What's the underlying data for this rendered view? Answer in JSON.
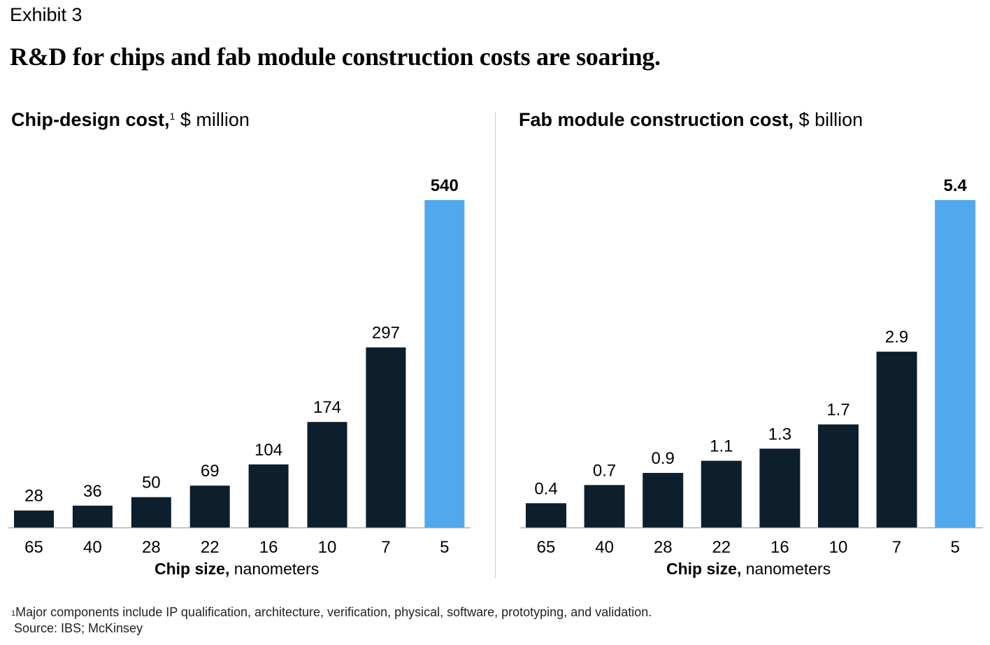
{
  "exhibit": "Exhibit 3",
  "headline": "R&D for chips and fab module construction costs are soaring.",
  "chart_data": [
    {
      "type": "bar",
      "title": "Chip-design cost,",
      "title_note": "1",
      "unit": "$ million",
      "categories": [
        "65",
        "40",
        "28",
        "22",
        "16",
        "10",
        "7",
        "5"
      ],
      "values": [
        28,
        36,
        50,
        69,
        104,
        174,
        297,
        540
      ],
      "value_labels": [
        "28",
        "36",
        "50",
        "69",
        "104",
        "174",
        "297",
        "540"
      ],
      "highlight_index": 7,
      "xlabel_bold": "Chip size,",
      "xlabel_rest": "nanometers",
      "ylim": [
        0,
        540
      ],
      "grid": false
    },
    {
      "type": "bar",
      "title": "Fab module construction cost,",
      "unit": "$ billion",
      "categories": [
        "65",
        "40",
        "28",
        "22",
        "16",
        "10",
        "7",
        "5"
      ],
      "values": [
        0.4,
        0.7,
        0.9,
        1.1,
        1.3,
        1.7,
        2.9,
        5.4
      ],
      "value_labels": [
        "0.4",
        "0.7",
        "0.9",
        "1.1",
        "1.3",
        "1.7",
        "2.9",
        "5.4"
      ],
      "highlight_index": 7,
      "xlabel_bold": "Chip size,",
      "xlabel_rest": "nanometers",
      "ylim": [
        0,
        5.4
      ],
      "grid": false
    }
  ],
  "colors": {
    "bar": "#0d1e2d",
    "highlight": "#52a8ec",
    "axis": "#b0b0b0"
  },
  "footnote": {
    "marker": "1",
    "text": "Major components include IP qualification, architecture, verification, physical, software, prototyping, and validation.",
    "source": "Source: IBS; McKinsey"
  }
}
